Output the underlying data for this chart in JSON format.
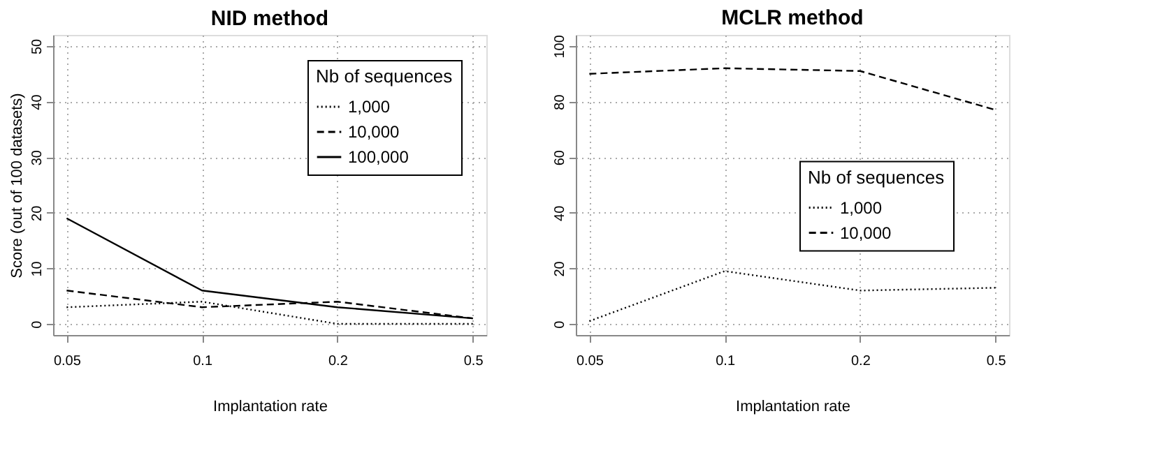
{
  "chart_data": [
    {
      "type": "line",
      "title": "NID method",
      "xlabel": "Implantation rate",
      "ylabel": "Score (out of 100 datasets)",
      "categories": [
        "0.05",
        "0.1",
        "0.2",
        "0.5"
      ],
      "ylim": [
        -2,
        52
      ],
      "yticks": [
        0,
        10,
        20,
        30,
        40,
        50
      ],
      "grid": true,
      "legend": "top right",
      "legend_title": "Nb of sequences",
      "series": [
        {
          "name": "1,000",
          "color": "#000000",
          "line_style": "dotted",
          "values": [
            3,
            4,
            0,
            0
          ]
        },
        {
          "name": "10,000",
          "color": "#000000",
          "line_style": "dashed",
          "values": [
            6,
            3,
            4,
            1
          ]
        },
        {
          "name": "100,000",
          "color": "#000000",
          "line_style": "solid",
          "values": [
            19,
            6,
            3,
            1
          ]
        }
      ]
    },
    {
      "type": "line",
      "title": "MCLR method",
      "xlabel": "Implantation rate",
      "categories": [
        "0.05",
        "0.1",
        "0.2",
        "0.5"
      ],
      "ylim": [
        -4,
        104
      ],
      "yticks": [
        0,
        20,
        40,
        60,
        80,
        100
      ],
      "grid": true,
      "legend": "right",
      "legend_title": "Nb of sequences",
      "series": [
        {
          "name": "1,000",
          "color": "#000000",
          "line_style": "dotted",
          "values": [
            1,
            19,
            12,
            13
          ]
        },
        {
          "name": "10,000",
          "color": "#000000",
          "line_style": "dashed",
          "values": [
            90,
            92,
            91,
            77
          ]
        }
      ]
    }
  ]
}
